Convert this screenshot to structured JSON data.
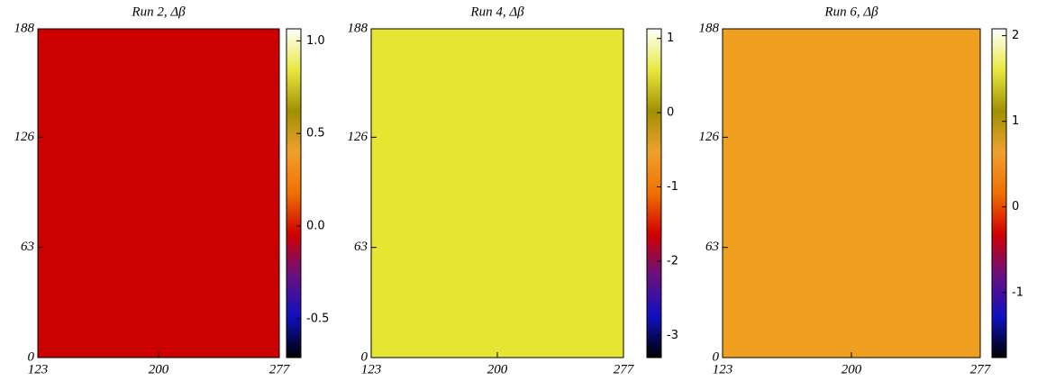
{
  "chart_data": [
    {
      "type": "heatmap",
      "title": "Run 2, Δβ",
      "xlim": [
        123,
        277
      ],
      "xticks": [
        123,
        200,
        277
      ],
      "ylim": [
        0,
        188
      ],
      "yticks": [
        0,
        63,
        126,
        188
      ],
      "background": "#cc0000",
      "clim": [
        -0.71,
        1.065
      ],
      "cticks": [
        {
          "value": -0.5,
          "label": "-0.5"
        },
        {
          "value": 0,
          "label": "0.0"
        },
        {
          "value": 0.5,
          "label": "0.5"
        },
        {
          "value": 1,
          "label": "1.0"
        }
      ],
      "colormap": [
        "#000000",
        "#1010c0",
        "#6a1080",
        "#d00000",
        "#f07000",
        "#f0a030",
        "#a09000",
        "#e8e840",
        "#ffffff"
      ]
    },
    {
      "type": "heatmap",
      "title": "Run 4, Δβ",
      "xlim": [
        123,
        277
      ],
      "xticks": [
        123,
        200,
        277
      ],
      "ylim": [
        0,
        188
      ],
      "yticks": [
        0,
        63,
        126,
        188
      ],
      "background": "#e6e632",
      "clim": [
        -3.3,
        1.13
      ],
      "cticks": [
        -3,
        -2,
        -1,
        0,
        1
      ],
      "colormap": [
        "#000000",
        "#1010c0",
        "#6a1080",
        "#d00000",
        "#f07000",
        "#f0a030",
        "#a09000",
        "#e8e840",
        "#ffffff"
      ]
    },
    {
      "type": "heatmap",
      "title": "Run 6, Δβ",
      "xlim": [
        123,
        277
      ],
      "xticks": [
        123,
        200,
        277
      ],
      "ylim": [
        0,
        188
      ],
      "yticks": [
        0,
        63,
        126,
        188
      ],
      "background": "#f0a020",
      "clim": [
        -1.76,
        2.08
      ],
      "cticks": [
        -1,
        0,
        1,
        2
      ],
      "colormap": [
        "#000000",
        "#1010c0",
        "#6a1080",
        "#d00000",
        "#f07000",
        "#f0a030",
        "#a09000",
        "#e8e840",
        "#ffffff"
      ]
    }
  ]
}
